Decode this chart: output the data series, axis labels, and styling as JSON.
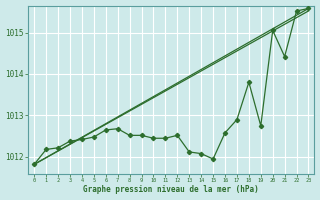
{
  "background_color": "#ceeaea",
  "grid_color": "#b0d8d8",
  "line_color": "#2d6e2d",
  "title": "Graphe pression niveau de la mer (hPa)",
  "ylim": [
    1011.6,
    1015.65
  ],
  "xlim": [
    -0.5,
    23.5
  ],
  "yticks": [
    1012,
    1013,
    1014,
    1015
  ],
  "xticks": [
    0,
    1,
    2,
    3,
    4,
    5,
    6,
    7,
    8,
    9,
    10,
    11,
    12,
    13,
    14,
    15,
    16,
    17,
    18,
    19,
    20,
    21,
    22,
    23
  ],
  "straight1": {
    "x": [
      0,
      23
    ],
    "y": [
      1011.82,
      1015.52
    ]
  },
  "straight2": {
    "x": [
      0,
      23
    ],
    "y": [
      1011.82,
      1015.58
    ]
  },
  "zigzag": {
    "x": [
      0,
      1,
      2,
      3,
      4,
      5,
      6,
      7,
      8,
      9,
      10,
      11,
      12,
      13,
      14,
      15,
      16,
      17,
      18,
      19,
      20,
      21,
      22,
      23
    ],
    "y": [
      1011.82,
      1012.18,
      1012.22,
      1012.38,
      1012.42,
      1012.48,
      1012.65,
      1012.68,
      1012.52,
      1012.52,
      1012.45,
      1012.45,
      1012.52,
      1012.12,
      1012.08,
      1011.95,
      1012.58,
      1012.9,
      1013.8,
      1012.75,
      1015.05,
      1014.42,
      1015.52,
      1015.58
    ]
  }
}
